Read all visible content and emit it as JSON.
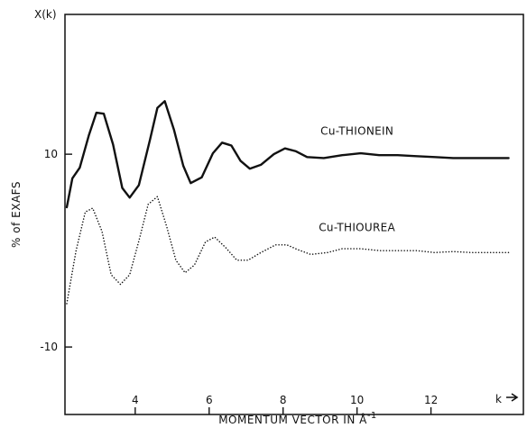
{
  "chart_data": {
    "type": "line",
    "ylabel_top": "X(k)",
    "ylabel": "% of EXAFS",
    "xlabel": "MOMENTUM VECTOR IN Å",
    "xlabel_exp": "-1",
    "x_axis_end_label": "k",
    "xlim": [
      2.1,
      14.5
    ],
    "ylim": [
      -17,
      24.5
    ],
    "x_ticks": [
      4,
      6,
      8,
      10,
      12
    ],
    "y_ticks": [
      10,
      -10
    ],
    "grid": false,
    "series": [
      {
        "name": "Cu-THIONEIN",
        "style": "solid",
        "points": [
          [
            2.15,
            4.5
          ],
          [
            2.3,
            7.5
          ],
          [
            2.5,
            8.6
          ],
          [
            2.75,
            12
          ],
          [
            2.95,
            14.3
          ],
          [
            3.15,
            14.2
          ],
          [
            3.4,
            11
          ],
          [
            3.65,
            6.5
          ],
          [
            3.85,
            5.5
          ],
          [
            4.1,
            6.8
          ],
          [
            4.4,
            11.5
          ],
          [
            4.6,
            14.8
          ],
          [
            4.8,
            15.5
          ],
          [
            5.05,
            12.5
          ],
          [
            5.3,
            8.8
          ],
          [
            5.5,
            7
          ],
          [
            5.8,
            7.6
          ],
          [
            6.1,
            10.1
          ],
          [
            6.35,
            11.2
          ],
          [
            6.6,
            10.9
          ],
          [
            6.85,
            9.3
          ],
          [
            7.1,
            8.5
          ],
          [
            7.4,
            8.9
          ],
          [
            7.75,
            10
          ],
          [
            8.05,
            10.6
          ],
          [
            8.35,
            10.3
          ],
          [
            8.65,
            9.7
          ],
          [
            9.1,
            9.6
          ],
          [
            9.6,
            9.9
          ],
          [
            10.1,
            10.1
          ],
          [
            10.6,
            9.9
          ],
          [
            11.1,
            9.9
          ],
          [
            11.6,
            9.8
          ],
          [
            12.1,
            9.7
          ],
          [
            12.6,
            9.6
          ],
          [
            13.1,
            9.6
          ],
          [
            13.6,
            9.6
          ],
          [
            14.1,
            9.6
          ]
        ]
      },
      {
        "name": "Cu-THIOUREA",
        "style": "dotted",
        "points": [
          [
            2.15,
            -5.5
          ],
          [
            2.4,
            0
          ],
          [
            2.65,
            4
          ],
          [
            2.85,
            4.4
          ],
          [
            3.1,
            2
          ],
          [
            3.35,
            -2.5
          ],
          [
            3.6,
            -3.5
          ],
          [
            3.85,
            -2.5
          ],
          [
            4.1,
            1
          ],
          [
            4.35,
            4.8
          ],
          [
            4.6,
            5.6
          ],
          [
            4.85,
            2.5
          ],
          [
            5.1,
            -1
          ],
          [
            5.35,
            -2.3
          ],
          [
            5.6,
            -1.5
          ],
          [
            5.9,
            0.9
          ],
          [
            6.15,
            1.4
          ],
          [
            6.45,
            0.3
          ],
          [
            6.75,
            -1
          ],
          [
            7.05,
            -1
          ],
          [
            7.4,
            -0.2
          ],
          [
            7.8,
            0.6
          ],
          [
            8.1,
            0.6
          ],
          [
            8.4,
            0.1
          ],
          [
            8.75,
            -0.4
          ],
          [
            9.2,
            -0.2
          ],
          [
            9.6,
            0.2
          ],
          [
            10.1,
            0.2
          ],
          [
            10.6,
            0
          ],
          [
            11.1,
            0
          ],
          [
            11.6,
            0
          ],
          [
            12.1,
            -0.2
          ],
          [
            12.6,
            -0.1
          ],
          [
            13.1,
            -0.2
          ],
          [
            13.6,
            -0.2
          ],
          [
            14.1,
            -0.2
          ]
        ]
      }
    ],
    "series_labels": [
      {
        "text": "Cu-THIONEIN",
        "x": 10,
        "y": 12
      },
      {
        "text": "Cu-THIOUREA",
        "x": 10,
        "y": 2
      }
    ]
  }
}
